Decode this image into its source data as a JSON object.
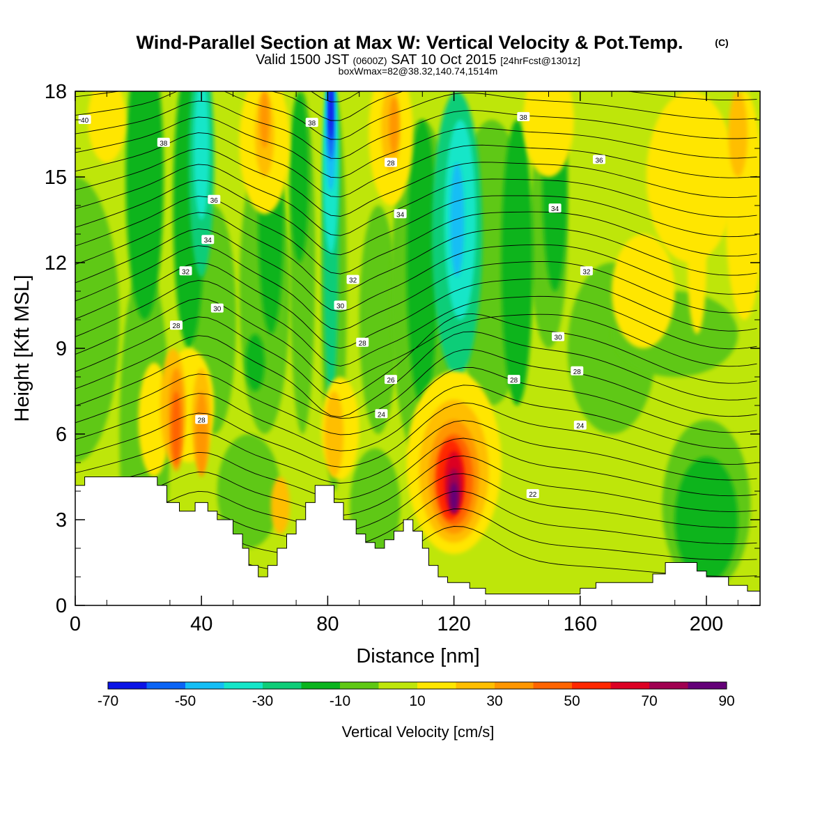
{
  "chart_data": {
    "type": "heatmap",
    "title": "Wind-Parallel Section at Max W: Vertical Velocity & Pot.Temp.",
    "title_tag": "(C)",
    "subtitle_valid": "Valid 1500 JST",
    "subtitle_utc": "(0600Z)",
    "subtitle_date": "SAT 10 Oct 2015",
    "subtitle_fcst": "[24hrFcst@1301z]",
    "subtitle_box": "boxWmax=82@38.32,140.74,1514m",
    "xlabel": "Distance [nm]",
    "ylabel": "Height [Kft MSL]",
    "xlim": [
      0,
      217
    ],
    "ylim": [
      0,
      18
    ],
    "x_ticks": [
      "0",
      "40",
      "80",
      "120",
      "160",
      "200"
    ],
    "y_ticks": [
      "0",
      "3",
      "6",
      "9",
      "12",
      "15",
      "18"
    ],
    "colorbar": {
      "label": "Vertical Velocity [cm/s]",
      "tick_labels": [
        "-70",
        "-50",
        "-30",
        "-10",
        "10",
        "30",
        "50",
        "70",
        "90"
      ],
      "colors": [
        "#0a14e6",
        "#0a64f5",
        "#14bef5",
        "#14e6c8",
        "#0fcd78",
        "#0ab41e",
        "#5fc814",
        "#bee60a",
        "#ffe600",
        "#ffbe00",
        "#ff9600",
        "#ff6400",
        "#ff2800",
        "#dc0023",
        "#a00050",
        "#640078"
      ]
    },
    "series": [
      {
        "name": "Vertical Velocity",
        "values": [
          {
            "x": 120,
            "y": 4.0,
            "v": 82
          },
          {
            "x": 118,
            "y": 5.0,
            "v": 65
          },
          {
            "x": 124,
            "y": 5.5,
            "v": 45
          },
          {
            "x": 31,
            "y": 6.5,
            "v": 45
          },
          {
            "x": 40,
            "y": 6.0,
            "v": 35
          },
          {
            "x": 60,
            "y": 16.5,
            "v": 25
          },
          {
            "x": 100,
            "y": 16.0,
            "v": 25
          },
          {
            "x": 210,
            "y": 16.0,
            "v": 25
          },
          {
            "x": 83,
            "y": 6.0,
            "v": 25
          },
          {
            "x": 81,
            "y": 16.0,
            "v": -65
          },
          {
            "x": 81,
            "y": 12.0,
            "v": -40
          },
          {
            "x": 40,
            "y": 15.5,
            "v": -35
          },
          {
            "x": 121,
            "y": 13.5,
            "v": -45
          },
          {
            "x": 60,
            "y": 13.0,
            "v": -15
          },
          {
            "x": 150,
            "y": 14.0,
            "v": -15
          },
          {
            "x": 200,
            "y": 3.0,
            "v": -20
          },
          {
            "x": 10,
            "y": 5.8,
            "v": -10
          }
        ]
      },
      {
        "name": "Pot.Temp.",
        "labels": [
          {
            "x": 3,
            "y": 17.0,
            "v": "40"
          },
          {
            "x": 28,
            "y": 16.2,
            "v": "38"
          },
          {
            "x": 75,
            "y": 16.9,
            "v": "38"
          },
          {
            "x": 142,
            "y": 17.1,
            "v": "38"
          },
          {
            "x": 44,
            "y": 14.2,
            "v": "36"
          },
          {
            "x": 100,
            "y": 15.5,
            "v": "28"
          },
          {
            "x": 166,
            "y": 15.6,
            "v": "36"
          },
          {
            "x": 42,
            "y": 12.8,
            "v": "34"
          },
          {
            "x": 103,
            "y": 13.7,
            "v": "34"
          },
          {
            "x": 152,
            "y": 13.9,
            "v": "34"
          },
          {
            "x": 35,
            "y": 11.7,
            "v": "32"
          },
          {
            "x": 88,
            "y": 11.4,
            "v": "32"
          },
          {
            "x": 162,
            "y": 11.7,
            "v": "32"
          },
          {
            "x": 45,
            "y": 10.4,
            "v": "30"
          },
          {
            "x": 84,
            "y": 10.5,
            "v": "30"
          },
          {
            "x": 153,
            "y": 9.4,
            "v": "30"
          },
          {
            "x": 32,
            "y": 9.8,
            "v": "28"
          },
          {
            "x": 91,
            "y": 9.2,
            "v": "28"
          },
          {
            "x": 100,
            "y": 7.9,
            "v": "26"
          },
          {
            "x": 139,
            "y": 7.9,
            "v": "28"
          },
          {
            "x": 159,
            "y": 8.2,
            "v": "28"
          },
          {
            "x": 97,
            "y": 6.7,
            "v": "24"
          },
          {
            "x": 160,
            "y": 6.3,
            "v": "24"
          },
          {
            "x": 40,
            "y": 6.5,
            "v": "28"
          },
          {
            "x": 145,
            "y": 3.9,
            "v": "22"
          }
        ]
      }
    ]
  }
}
